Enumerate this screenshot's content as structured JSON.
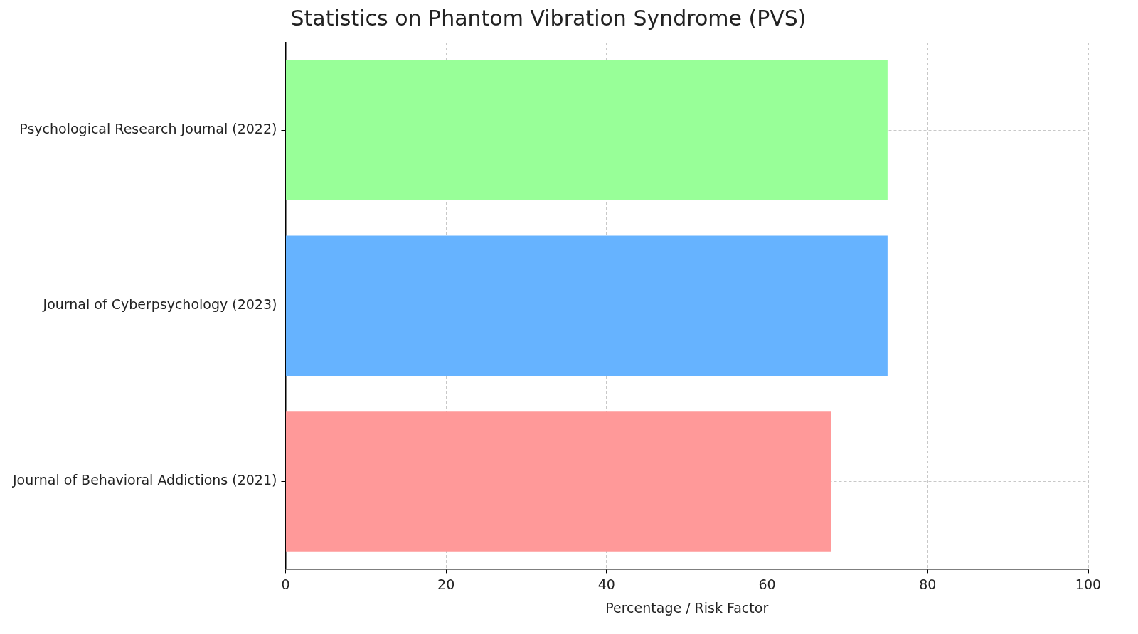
{
  "chart_data": {
    "type": "bar",
    "orientation": "horizontal",
    "title": "Statistics on Phantom Vibration Syndrome (PVS)",
    "x_label": "Percentage / Risk Factor",
    "categories": [
      "Psychological Research Journal (2022)",
      "Journal of Cyberpsychology (2023)",
      "Journal of Behavioral Addictions (2021)"
    ],
    "values": [
      75,
      75,
      68
    ],
    "colors": [
      "#98ff98",
      "#66b3ff",
      "#ff9999"
    ],
    "xlim": [
      0,
      100
    ],
    "xticks": [
      0,
      20,
      40,
      60,
      80,
      100
    ],
    "grid": true
  }
}
